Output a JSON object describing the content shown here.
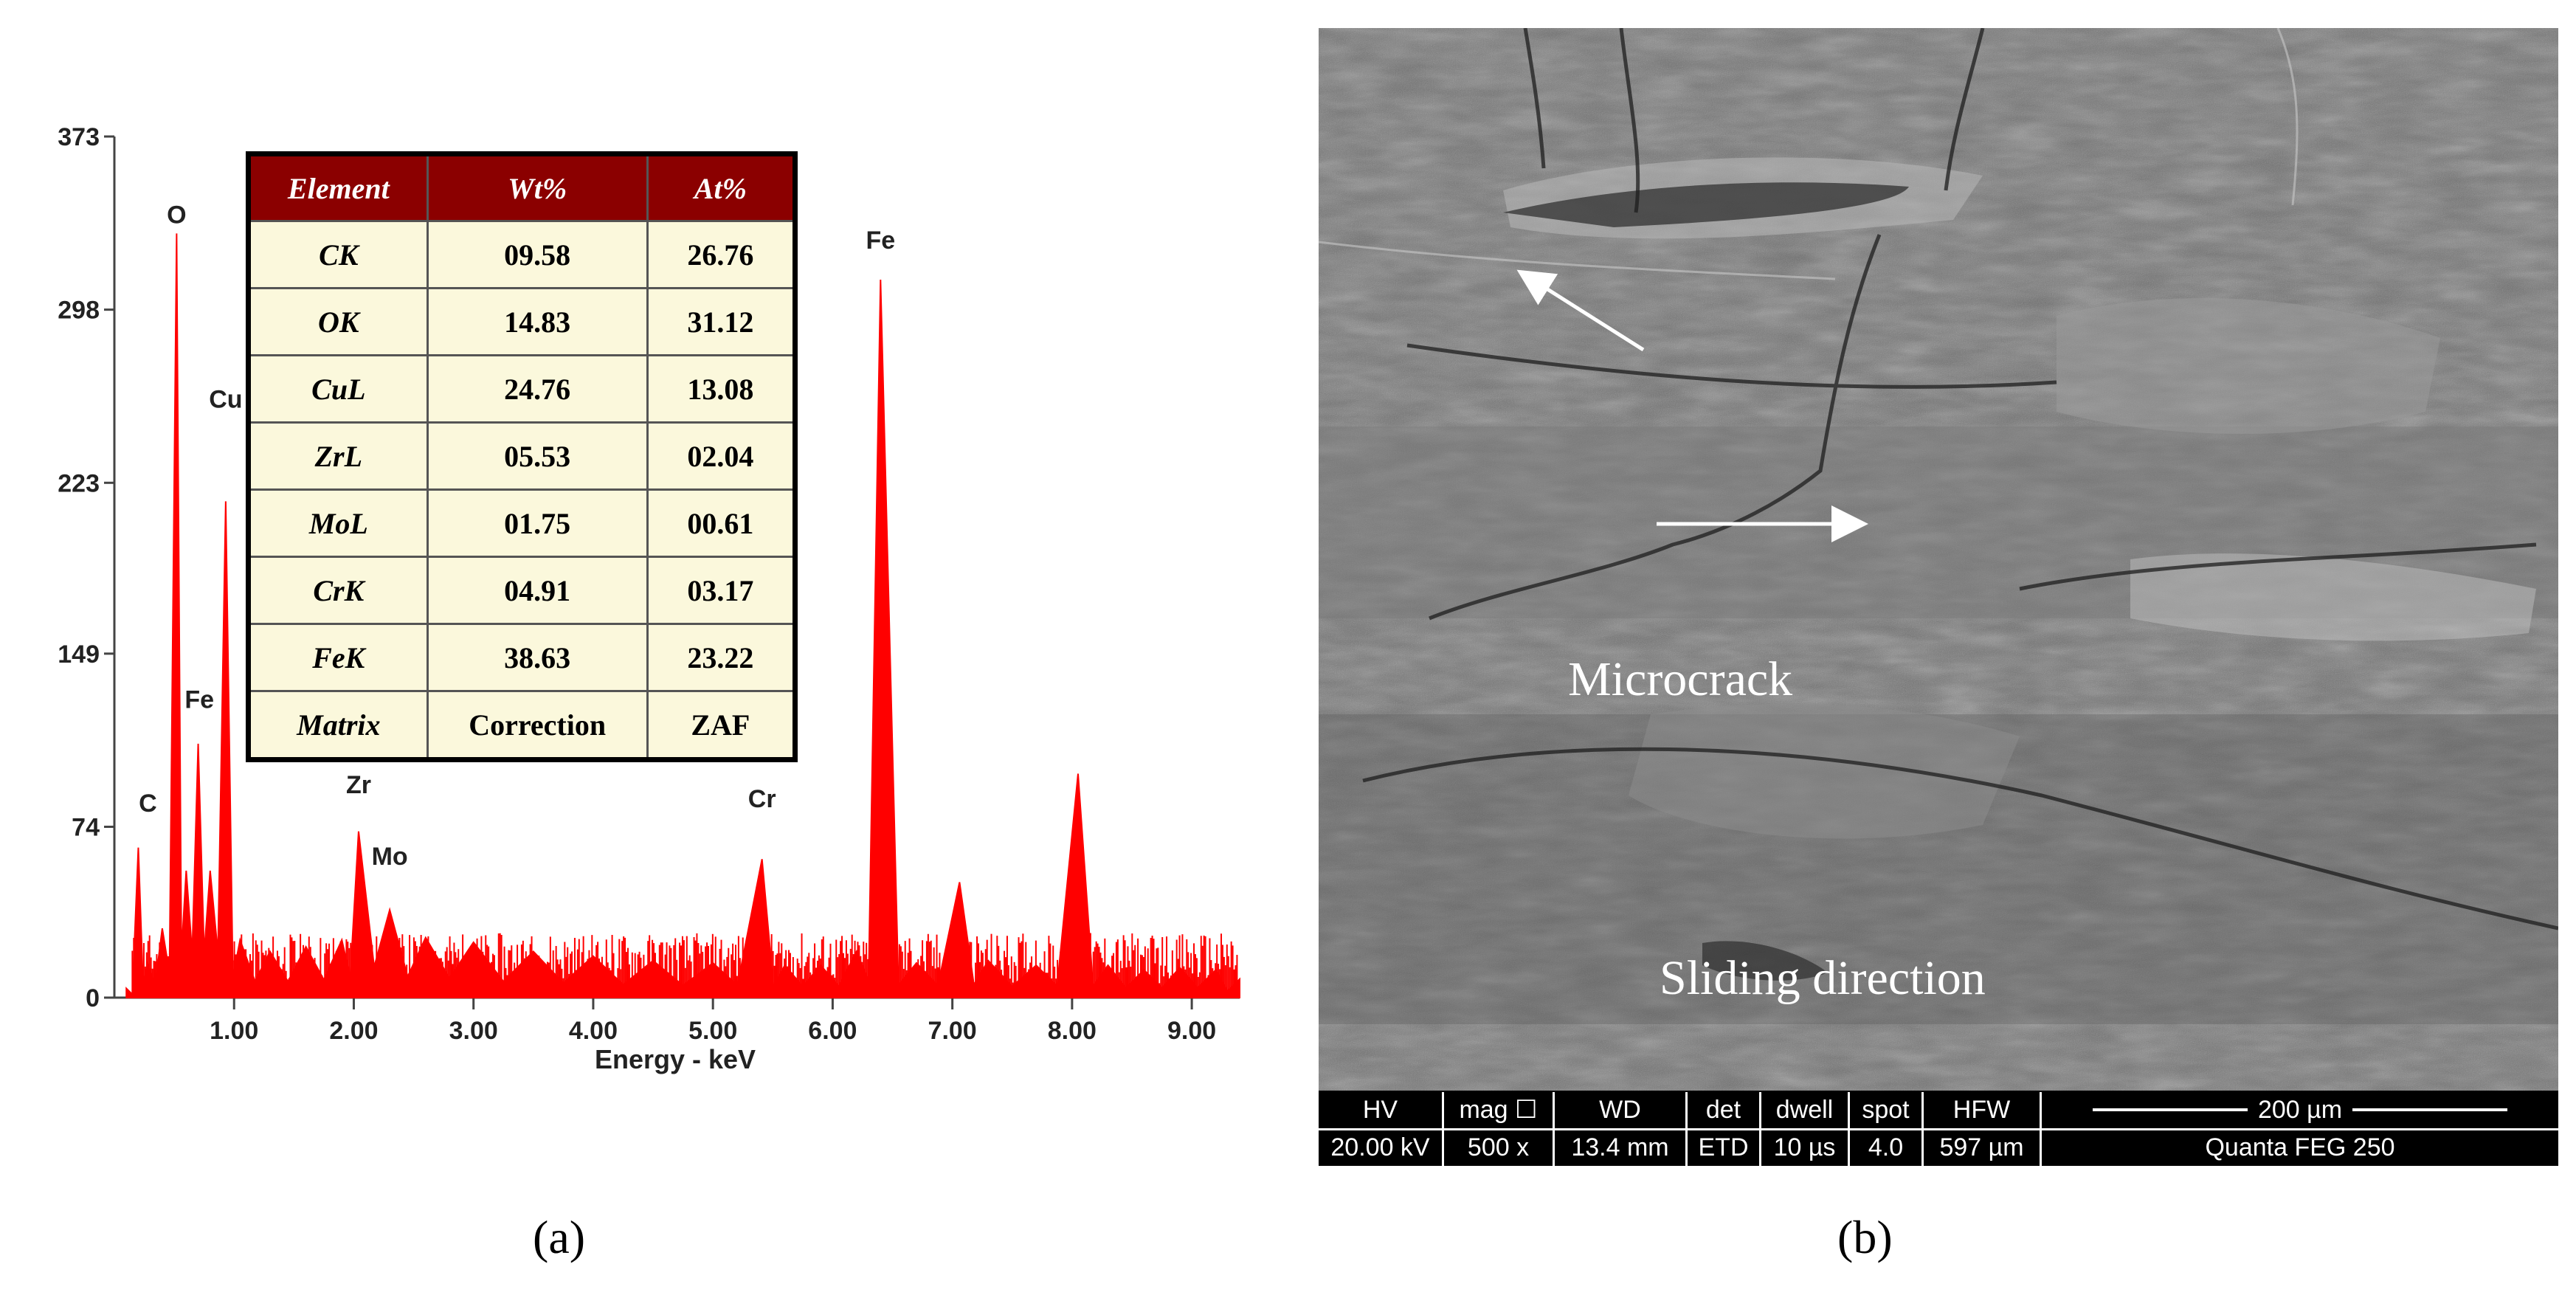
{
  "chart_data": {
    "type": "line",
    "xlabel": "Energy - keV",
    "ylabel": "",
    "xlim": [
      0,
      9.4
    ],
    "ylim": [
      0,
      373
    ],
    "x_ticks": [
      "1.00",
      "2.00",
      "3.00",
      "4.00",
      "5.00",
      "6.00",
      "7.00",
      "8.00",
      "9.00"
    ],
    "y_ticks": [
      "0",
      "74",
      "149",
      "223",
      "298",
      "373"
    ],
    "color": "#ff0000",
    "series": [
      {
        "x": [
          0.1,
          0.2,
          0.28,
          0.4,
          0.52,
          0.6,
          0.7,
          0.8,
          0.93,
          1.05,
          1.3,
          1.6,
          1.9,
          2.04,
          2.3,
          2.6,
          3.0,
          3.5,
          4.0,
          4.5,
          5.0,
          5.41,
          5.6,
          5.9,
          6.2,
          6.4,
          6.7,
          7.06,
          7.3,
          7.7,
          8.05,
          8.3,
          8.6,
          8.9,
          9.2,
          9.4
        ],
        "y": [
          4,
          65,
          15,
          30,
          331,
          55,
          110,
          55,
          215,
          25,
          20,
          22,
          25,
          72,
          38,
          26,
          24,
          20,
          18,
          16,
          15,
          60,
          14,
          14,
          20,
          311,
          15,
          50,
          16,
          14,
          97,
          14,
          12,
          13,
          12,
          8
        ]
      }
    ],
    "annotations": [
      {
        "text": "O",
        "x": 0.52,
        "y": 331
      },
      {
        "text": "Cu",
        "x": 0.93,
        "y": 251
      },
      {
        "text": "Fe",
        "x": 0.71,
        "y": 121
      },
      {
        "text": "C",
        "x": 0.28,
        "y": 76
      },
      {
        "text": "Zr",
        "x": 2.04,
        "y": 84
      },
      {
        "text": "Mo",
        "x": 2.3,
        "y": 53
      },
      {
        "text": "Cr",
        "x": 5.41,
        "y": 78
      },
      {
        "text": "Fe",
        "x": 6.4,
        "y": 320
      }
    ],
    "table": {
      "headers": [
        "Element",
        "Wt%",
        "At%"
      ],
      "rows": [
        [
          "CK",
          "09.58",
          "26.76"
        ],
        [
          "OK",
          "14.83",
          "31.12"
        ],
        [
          "CuL",
          "24.76",
          "13.08"
        ],
        [
          "ZrL",
          "05.53",
          "02.04"
        ],
        [
          "MoL",
          "01.75",
          "00.61"
        ],
        [
          "CrK",
          "04.91",
          "03.17"
        ],
        [
          "FeK",
          "38.63",
          "23.22"
        ],
        [
          "Matrix",
          "Correction",
          "ZAF"
        ]
      ]
    }
  },
  "panels": {
    "a_label": "(a)",
    "b_label": "(b)"
  },
  "sem": {
    "microcrack_label": "Microcrack",
    "sliding_label": "Sliding direction",
    "info": [
      {
        "top": "HV",
        "bottom": "20.00 kV"
      },
      {
        "top": "mag ☐",
        "bottom": "500 x"
      },
      {
        "top": "WD",
        "bottom": "13.4 mm"
      },
      {
        "top": "det",
        "bottom": "ETD"
      },
      {
        "top": "dwell",
        "bottom": "10 µs"
      },
      {
        "top": "spot",
        "bottom": "4.0"
      },
      {
        "top": "HFW",
        "bottom": "597 µm"
      }
    ],
    "scale_bar": "200 µm",
    "instrument": "Quanta FEG 250"
  }
}
